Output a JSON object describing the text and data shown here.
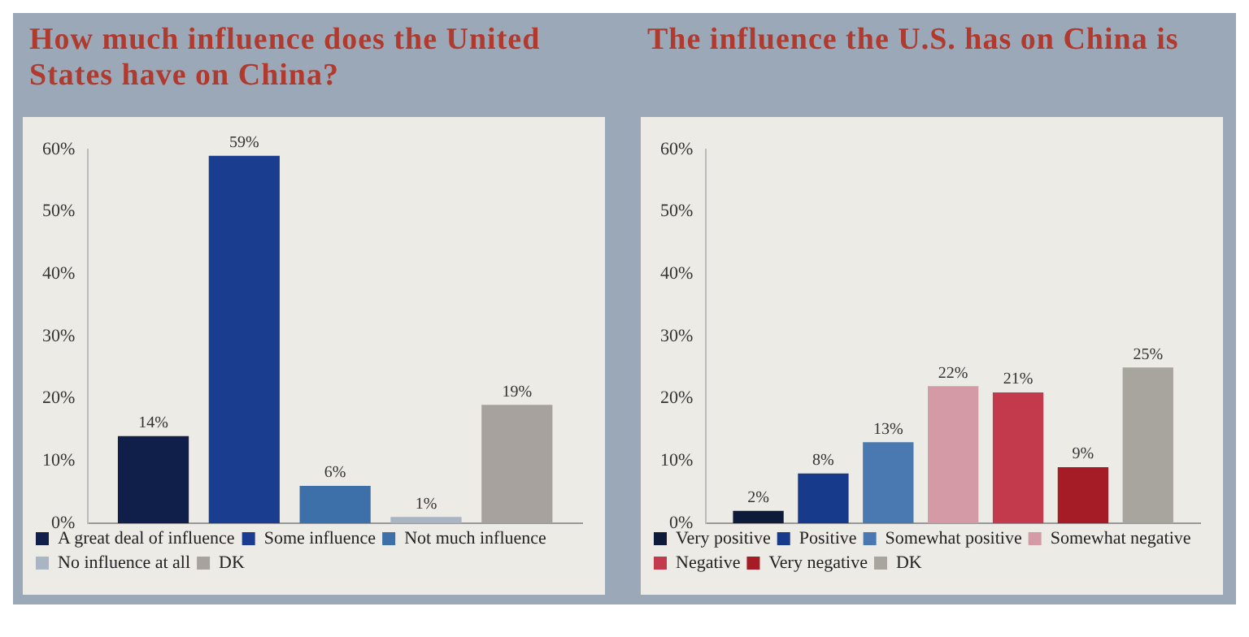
{
  "chart_data": [
    {
      "type": "bar",
      "title": "How much influence does the United States have on China?",
      "categories": [
        null
      ],
      "ylim": [
        0,
        60
      ],
      "yticks": [
        {
          "value": 0,
          "label": "0%"
        },
        {
          "value": 10,
          "label": "10%"
        },
        {
          "value": 20,
          "label": "20%"
        },
        {
          "value": 30,
          "label": "30%"
        },
        {
          "value": 40,
          "label": "40%"
        },
        {
          "value": 50,
          "label": "50%"
        },
        {
          "value": 60,
          "label": "60%"
        }
      ],
      "grid": false,
      "legend": "bottom",
      "tick_labels": "y",
      "series": [
        {
          "name": "A great deal of influence",
          "color": "#0f1f4a",
          "values": [
            14
          ],
          "value_labels": [
            "14%"
          ]
        },
        {
          "name": "Some influence",
          "color": "#1a3d8f",
          "values": [
            59
          ],
          "value_labels": [
            "59%"
          ]
        },
        {
          "name": "Not much influence",
          "color": "#3d6fa8",
          "values": [
            6
          ],
          "value_labels": [
            "6%"
          ]
        },
        {
          "name": "No influence at all",
          "color": "#a9b5c2",
          "values": [
            1
          ],
          "value_labels": [
            "1%"
          ]
        },
        {
          "name": "DK",
          "color": "#a7a29d",
          "values": [
            19
          ],
          "value_labels": [
            "19%"
          ]
        }
      ]
    },
    {
      "type": "bar",
      "title": "The influence the U.S. has on China is",
      "categories": [
        null
      ],
      "ylim": [
        0,
        60
      ],
      "yticks": [
        {
          "value": 0,
          "label": "0%"
        },
        {
          "value": 10,
          "label": "10%"
        },
        {
          "value": 20,
          "label": "20%"
        },
        {
          "value": 30,
          "label": "30%"
        },
        {
          "value": 40,
          "label": "40%"
        },
        {
          "value": 50,
          "label": "50%"
        },
        {
          "value": 60,
          "label": "60%"
        }
      ],
      "grid": false,
      "legend": "bottom",
      "tick_labels": "y",
      "series": [
        {
          "name": "Very positive",
          "color": "#0d1a3a",
          "values": [
            2
          ],
          "value_labels": [
            "2%"
          ]
        },
        {
          "name": "Positive",
          "color": "#173b8a",
          "values": [
            8
          ],
          "value_labels": [
            "8%"
          ]
        },
        {
          "name": "Somewhat positive",
          "color": "#4a78b0",
          "values": [
            13
          ],
          "value_labels": [
            "13%"
          ]
        },
        {
          "name": "Somewhat negative",
          "color": "#d49aa5",
          "values": [
            22
          ],
          "value_labels": [
            "22%"
          ]
        },
        {
          "name": "Negative",
          "color": "#c23a4c",
          "values": [
            21
          ],
          "value_labels": [
            "21%"
          ]
        },
        {
          "name": "Very negative",
          "color": "#a51c26",
          "values": [
            9
          ],
          "value_labels": [
            "9%"
          ]
        },
        {
          "name": "DK",
          "color": "#a8a49e",
          "values": [
            25
          ],
          "value_labels": [
            "25%"
          ]
        }
      ]
    }
  ]
}
